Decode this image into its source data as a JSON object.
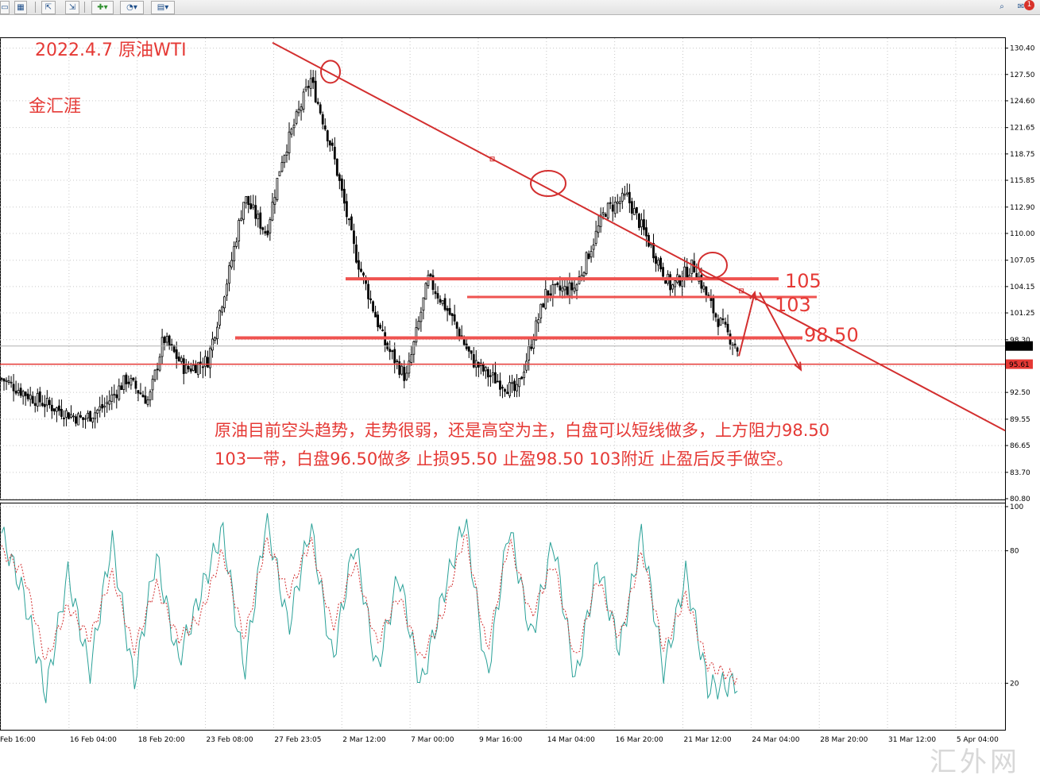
{
  "toolbar": {
    "icons": [
      "folder-icon",
      "grid-icon",
      "chart-up-icon",
      "chart-down-icon",
      "add-indicator-icon",
      "clock-icon",
      "template-icon",
      "search-icon",
      "chat-icon"
    ],
    "notification_count": "1"
  },
  "colors": {
    "candle": "#000000",
    "trendline": "#d32f2f",
    "level_line": "#ef5350",
    "current_price_line": "#e53935",
    "stoch_main": "#2aa198",
    "stoch_signal": "#d32f2f",
    "annotation": "#e53935"
  },
  "annotations": {
    "date_title": "2022.4.7 原油WTI",
    "author": "金汇涯",
    "analysis_line1": "原油目前空头趋势，走势很弱，还是高空为主，白盘可以短线做多，上方阻力98.50",
    "analysis_line2": "103一带，白盘96.50做多 止损95.50 止盈98.50 103附近 止盈后反手做空。",
    "level_105": "105",
    "level_103": "103",
    "level_98_50": "98.50"
  },
  "watermark": "汇外网",
  "chart_data": [
    {
      "type": "candlestick",
      "symbol": "WTI",
      "ylim": [
        80.8,
        131.5
      ],
      "y_ticks": [
        "130.40",
        "127.50",
        "124.60",
        "121.65",
        "118.75",
        "115.85",
        "112.90",
        "110.00",
        "107.05",
        "104.15",
        "101.25",
        "98.30",
        "95.40",
        "92.50",
        "89.55",
        "86.65",
        "83.70",
        "80.80"
      ],
      "current_price_labels": [
        "97.61",
        "95.61"
      ],
      "x_ticks": [
        "Feb 16:00",
        "16 Feb 04:00",
        "18 Feb 20:00",
        "23 Feb 08:00",
        "27 Feb 23:05",
        "2 Mar 12:00",
        "7 Mar 00:00",
        "9 Mar 16:00",
        "14 Mar 04:00",
        "16 Mar 20:00",
        "21 Mar 12:00",
        "24 Mar 04:00",
        "28 Mar 20:00",
        "31 Mar 12:00",
        "5 Apr 04:00"
      ],
      "horizontal_levels": [
        105,
        103,
        98.5,
        95.61
      ],
      "trendline_points": [
        [
          0.35,
          131.0
        ],
        [
          1.0,
          88.3
        ]
      ],
      "circled_highs": [
        127.8,
        115.5,
        106.5
      ],
      "anchors_x": [
        0.0,
        0.04,
        0.08,
        0.11,
        0.14,
        0.17,
        0.2,
        0.22,
        0.25,
        0.28,
        0.31,
        0.33,
        0.36,
        0.38,
        0.42,
        0.45,
        0.48,
        0.52,
        0.55,
        0.58,
        0.61,
        0.64,
        0.66,
        0.7,
        0.74,
        0.78,
        0.82,
        0.85,
        0.88,
        0.91,
        0.94,
        0.97,
        1.0
      ],
      "anchors_y": [
        94.0,
        92.0,
        90.5,
        89.5,
        91.0,
        94.0,
        91.5,
        98.5,
        95.0,
        96.0,
        106.0,
        114.0,
        110.0,
        118.0,
        127.0,
        119.0,
        108.0,
        98.0,
        94.0,
        105.0,
        101.0,
        96.0,
        94.5,
        92.5,
        103.5,
        104.0,
        112.5,
        114.0,
        109.0,
        104.0,
        106.5,
        101.0,
        97.3
      ]
    },
    {
      "type": "line",
      "indicator": "Stochastic Oscillator",
      "ylim": [
        0,
        100
      ],
      "y_ticks": [
        "100",
        "80",
        "20"
      ],
      "series": [
        {
          "key": "main",
          "anchors_x": [
            0.0,
            0.03,
            0.06,
            0.09,
            0.12,
            0.15,
            0.18,
            0.21,
            0.24,
            0.27,
            0.3,
            0.33,
            0.36,
            0.39,
            0.42,
            0.45,
            0.48,
            0.51,
            0.54,
            0.57,
            0.6,
            0.63,
            0.66,
            0.69,
            0.72,
            0.75,
            0.78,
            0.81,
            0.84,
            0.87,
            0.9,
            0.93,
            0.96,
            1.0
          ],
          "values": [
            88,
            60,
            15,
            70,
            25,
            85,
            20,
            78,
            30,
            60,
            90,
            25,
            95,
            45,
            92,
            30,
            85,
            25,
            70,
            18,
            60,
            95,
            22,
            92,
            40,
            85,
            20,
            75,
            35,
            88,
            25,
            70,
            18,
            20
          ]
        },
        {
          "key": "signal",
          "anchors_x": [
            0.0,
            0.03,
            0.06,
            0.09,
            0.12,
            0.15,
            0.18,
            0.21,
            0.24,
            0.27,
            0.3,
            0.33,
            0.36,
            0.39,
            0.42,
            0.45,
            0.48,
            0.51,
            0.54,
            0.57,
            0.6,
            0.63,
            0.66,
            0.69,
            0.72,
            0.75,
            0.78,
            0.81,
            0.84,
            0.87,
            0.9,
            0.93,
            0.96,
            1.0
          ],
          "values": [
            80,
            70,
            30,
            55,
            40,
            70,
            35,
            65,
            40,
            50,
            80,
            40,
            85,
            60,
            85,
            45,
            75,
            38,
            60,
            30,
            52,
            88,
            35,
            85,
            50,
            75,
            30,
            68,
            40,
            80,
            35,
            60,
            28,
            22
          ]
        }
      ]
    }
  ]
}
